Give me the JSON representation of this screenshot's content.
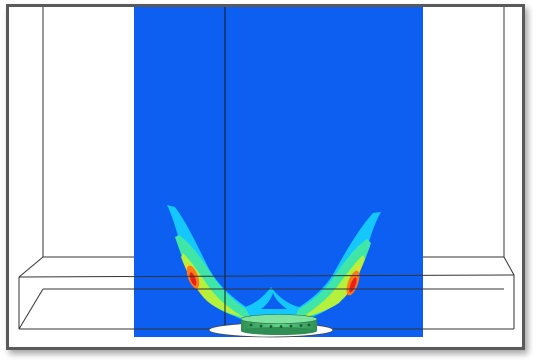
{
  "figure": {
    "colors": {
      "background": "#ffffff",
      "frame_border": "#5a5a5a",
      "plane_fill": "#0d5ff2",
      "contour_low": "#14c8ff",
      "contour_mid_low": "#3fe6a8",
      "contour_mid": "#b4f03c",
      "contour_mid_high": "#ffd21e",
      "contour_high": "#ff7a14",
      "contour_peak": "#e8201a",
      "object_fill": "#3fb56a",
      "wireframe": "#333333"
    },
    "scale": "field-contour-on-plane"
  }
}
